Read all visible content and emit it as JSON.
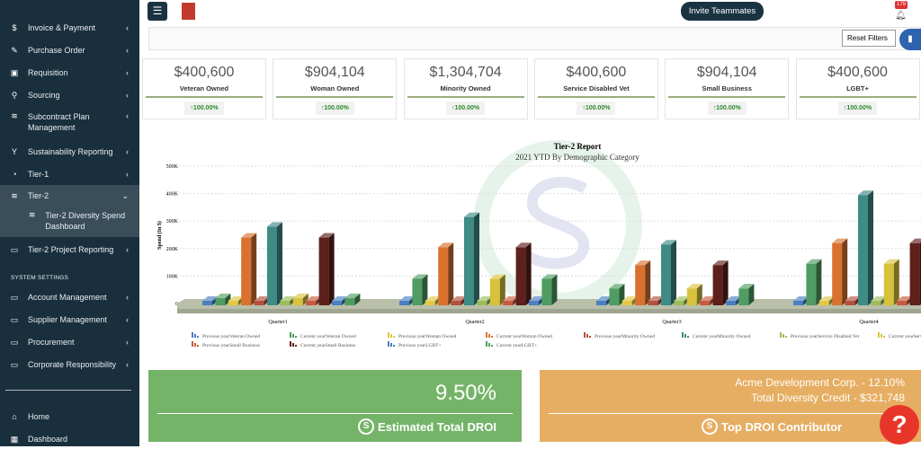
{
  "sidebar": {
    "items": [
      {
        "label": "Invoice & Payment",
        "icon": "invoice-icon"
      },
      {
        "label": "Purchase Order",
        "icon": "purchase-order-icon"
      },
      {
        "label": "Requisition",
        "icon": "briefcase-icon"
      },
      {
        "label": "Sourcing",
        "icon": "search-icon"
      },
      {
        "label": "Subcontract Plan Management",
        "icon": "layers-icon"
      },
      {
        "label": "Sustainability Reporting",
        "icon": "seedling-icon"
      },
      {
        "label": "Tier-1",
        "icon": "pie-chart-icon"
      },
      {
        "label": "Tier-2",
        "icon": "layers-icon"
      },
      {
        "label": "Tier-2 Diversity Spend Dashboard",
        "icon": "layers-icon"
      },
      {
        "label": "Tier-2 Project Reporting",
        "icon": "monitor-icon"
      }
    ],
    "section_header": "SYSTEM SETTINGS",
    "settings": [
      {
        "label": "Account Management"
      },
      {
        "label": "Supplier Management"
      },
      {
        "label": "Procurement"
      },
      {
        "label": "Corporate Responsibility"
      }
    ],
    "bottom": [
      {
        "label": "Home",
        "icon": "home-icon"
      },
      {
        "label": "Dashboard",
        "icon": "dashboard-icon"
      }
    ]
  },
  "topbar": {
    "invite_label": "Invite Teammates",
    "notification_count": "179"
  },
  "filters": {
    "reset_label": "Reset Filters"
  },
  "cards": [
    {
      "amount": "$400,600",
      "label": "Veteran Owned",
      "change": "↑100.00%"
    },
    {
      "amount": "$904,104",
      "label": "Woman Owned",
      "change": "↑100.00%"
    },
    {
      "amount": "$1,304,704",
      "label": "Minority Owned",
      "change": "↑100.00%"
    },
    {
      "amount": "$400,600",
      "label": "Service Disabled Vet",
      "change": "↑100.00%"
    },
    {
      "amount": "$904,104",
      "label": "Small Business",
      "change": "↑100.00%"
    },
    {
      "amount": "$400,600",
      "label": "LGBT+",
      "change": "↑100.00%"
    }
  ],
  "chart_data": {
    "type": "bar",
    "title": "Tier-2 Report",
    "subtitle": "2021 YTD By Demographic Category",
    "ylabel": "Spend (In $)",
    "ylim": [
      0,
      500000
    ],
    "yticks": [
      "0",
      "100K",
      "200K",
      "300K",
      "400K",
      "500K"
    ],
    "grid": true,
    "legend": "bottom",
    "style": "3d",
    "categories": [
      "Quarter1",
      "Quarter2",
      "Quarter3",
      "Quarter4"
    ],
    "series": [
      {
        "name": "Previous yearVeteran Owned",
        "color": "#4a7fc1",
        "values": [
          0,
          0,
          0,
          0
        ]
      },
      {
        "name": "Current yearVeteran Owned",
        "color": "#4f9d62",
        "values": [
          20000,
          90000,
          55000,
          145000
        ]
      },
      {
        "name": "Previous yearWoman Owned",
        "color": "#e2c844",
        "values": [
          0,
          0,
          0,
          0
        ]
      },
      {
        "name": "Current yearWoman Owned",
        "color": "#d9712f",
        "values": [
          240000,
          205000,
          140000,
          220000
        ]
      },
      {
        "name": "Previous yearMinority Owned",
        "color": "#b4503c",
        "values": [
          0,
          0,
          0,
          0
        ]
      },
      {
        "name": "Current yearMinority Owned",
        "color": "#3f8b86",
        "values": [
          280000,
          315000,
          215000,
          395000
        ]
      },
      {
        "name": "Previous yearService Disabled Vet",
        "color": "#9bbd5a",
        "values": [
          0,
          0,
          0,
          0
        ]
      },
      {
        "name": "Current yearService Disabled Vet",
        "color": "#d8c23c",
        "values": [
          20000,
          90000,
          55000,
          145000
        ]
      },
      {
        "name": "Previous yearSmall Business",
        "color": "#c85a3e",
        "values": [
          0,
          0,
          0,
          0
        ]
      },
      {
        "name": "Current yearSmall Business",
        "color": "#5e201b",
        "values": [
          240000,
          205000,
          140000,
          220000
        ]
      },
      {
        "name": "Previous yearLGBT+",
        "color": "#4a7fc1",
        "values": [
          0,
          0,
          0,
          0
        ]
      },
      {
        "name": "Current yearLGBT+",
        "color": "#4f9d62",
        "values": [
          20000,
          90000,
          55000,
          145000
        ]
      }
    ]
  },
  "droi": {
    "value": "9.50%",
    "label": "Estimated Total DROI"
  },
  "top": {
    "line1": "Acme Development Corp. - 12.10%",
    "line2": "Total Diversity Credit - $321,748",
    "label": "Top DROI Contributor"
  }
}
